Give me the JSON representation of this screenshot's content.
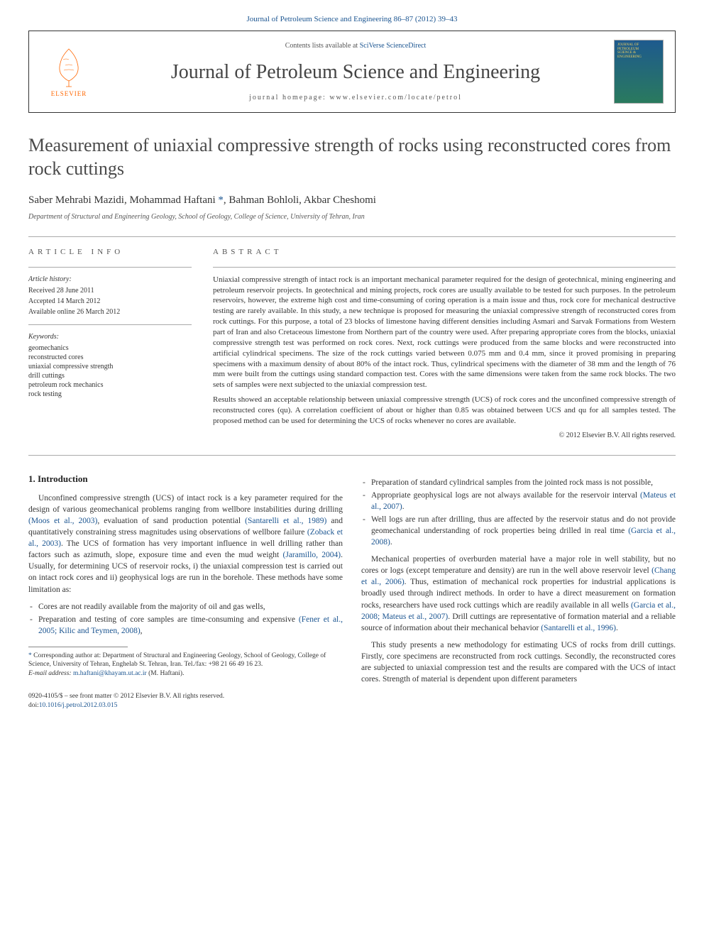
{
  "top_link": "Journal of Petroleum Science and Engineering 86–87 (2012) 39–43",
  "header": {
    "publisher_name": "ELSEVIER",
    "contents_prefix": "Contents lists available at ",
    "contents_link": "SciVerse ScienceDirect",
    "journal_name": "Journal of Petroleum Science and Engineering",
    "homepage_prefix": "journal homepage: ",
    "homepage": "www.elsevier.com/locate/petrol",
    "cover_lines": [
      "JOURNAL OF",
      "PETROLEUM",
      "SCIENCE &",
      "ENGINEERING"
    ]
  },
  "article": {
    "title": "Measurement of uniaxial compressive strength of rocks using reconstructed cores from rock cuttings",
    "authors_pre": "Saber Mehrabi Mazidi, Mohammad Haftani ",
    "authors_post": ", Bahman Bohloli, Akbar Cheshomi",
    "corr_symbol": "*",
    "affiliation": "Department of Structural and Engineering Geology, School of Geology, College of Science, University of Tehran, Iran"
  },
  "info": {
    "label": "article info",
    "history_label": "Article history:",
    "received": "Received 28 June 2011",
    "accepted": "Accepted 14 March 2012",
    "online": "Available online 26 March 2012",
    "keywords_label": "Keywords:",
    "keywords": [
      "geomechanics",
      "reconstructed cores",
      "uniaxial compressive strength",
      "drill cuttings",
      "petroleum rock mechanics",
      "rock testing"
    ]
  },
  "abstract": {
    "label": "abstract",
    "p1": "Uniaxial compressive strength of intact rock is an important mechanical parameter required for the design of geotechnical, mining engineering and petroleum reservoir projects. In geotechnical and mining projects, rock cores are usually available to be tested for such purposes. In the petroleum reservoirs, however, the extreme high cost and time-consuming of coring operation is a main issue and thus, rock core for mechanical destructive testing are rarely available. In this study, a new technique is proposed for measuring the uniaxial compressive strength of reconstructed cores from rock cuttings. For this purpose, a total of 23 blocks of limestone having different densities including Asmari and Sarvak Formations from Western part of Iran and also Cretaceous limestone from Northern part of the country were used. After preparing appropriate cores from the blocks, uniaxial compressive strength test was performed on rock cores. Next, rock cuttings were produced from the same blocks and were reconstructed into artificial cylindrical specimens. The size of the rock cuttings varied between 0.075 mm and 0.4 mm, since it proved promising in preparing specimens with a maximum density of about 80% of the intact rock. Thus, cylindrical specimens with the diameter of 38 mm and the length of 76 mm were built from the cuttings using standard compaction test. Cores with the same dimensions were taken from the same rock blocks. The two sets of samples were next subjected to the uniaxial compression test.",
    "p2": "Results showed an acceptable relationship between uniaxial compressive strength (UCS) of rock cores and the unconfined compressive strength of reconstructed cores (qu). A correlation coefficient of about or higher than 0.85 was obtained between UCS and qu for all samples tested. The proposed method can be used for determining the UCS of rocks whenever no cores are available.",
    "copyright": "© 2012 Elsevier B.V. All rights reserved."
  },
  "intro": {
    "heading": "1. Introduction",
    "p1a": "Unconfined compressive strength (UCS) of intact rock is a key parameter required for the design of various geomechanical problems ranging from wellbore instabilities during drilling ",
    "c1": "(Moos et al., 2003)",
    "p1b": ", evaluation of sand production potential ",
    "c2": "(Santarelli et al., 1989)",
    "p1c": " and quantitatively constraining stress magnitudes using observations of wellbore failure ",
    "c3": "(Zoback et al., 2003)",
    "p1d": ". The UCS of formation has very important influence in well drilling rather than factors such as azimuth, slope, exposure time and even the mud weight ",
    "c4": "(Jaramillo, 2004)",
    "p1e": ". Usually, for determining UCS of reservoir rocks, i) the uniaxial compression test is carried out on intact rock cores and ii) geophysical logs are run in the borehole. These methods have some limitation as:",
    "bullets_left": [
      "Cores are not readily available from the majority of oil and gas wells,",
      "Preparation and testing of core samples are time-consuming and expensive |(Fener et al., 2005; Kilic and Teymen, 2008)|,"
    ],
    "bullets_right": [
      "Preparation of standard cylindrical samples from the jointed rock mass is not possible,",
      "Appropriate geophysical logs are not always available for the reservoir interval |(Mateus et al., 2007)|.",
      "Well logs are run after drilling, thus are affected by the reservoir status and do not provide geomechanical understanding of rock properties being drilled in real time |(Garcia et al., 2008)|."
    ],
    "p2a": "Mechanical properties of overburden material have a major role in well stability, but no cores or logs (except temperature and density) are run in the well above reservoir level ",
    "c5": "(Chang et al., 2006)",
    "p2b": ". Thus, estimation of mechanical rock properties for industrial applications is broadly used through indirect methods. In order to have a direct measurement on formation rocks, researchers have used rock cuttings which are readily available in all wells ",
    "c6": "(Garcia et al., 2008; Mateus et al., 2007)",
    "p2c": ". Drill cuttings are representative of formation material and a reliable source of information about their mechanical behavior ",
    "c7": "(Santarelli et al., 1996)",
    "p2d": ".",
    "p3": "This study presents a new methodology for estimating UCS of rocks from drill cuttings. Firstly, core specimens are reconstructed from rock cuttings. Secondly, the reconstructed cores are subjected to uniaxial compression test and the results are compared with the UCS of intact cores. Strength of material is dependent upon different parameters"
  },
  "footnotes": {
    "corr_symbol": "*",
    "corr_text": " Corresponding author at: Department of Structural and Engineering Geology, School of Geology, College of Science, University of Tehran, Enghelab St. Tehran, Iran. Tel./fax: +98 21 66 49 16 23.",
    "email_label": "E-mail address: ",
    "email": "m.haftani@khayam.ut.ac.ir",
    "email_suffix": " (M. Haftani).",
    "front_matter": "0920-4105/$ – see front matter © 2012 Elsevier B.V. All rights reserved.",
    "doi_prefix": "doi:",
    "doi": "10.1016/j.petrol.2012.03.015"
  },
  "colors": {
    "link": "#1a5490",
    "text": "#333333",
    "orange": "#ff6600"
  }
}
